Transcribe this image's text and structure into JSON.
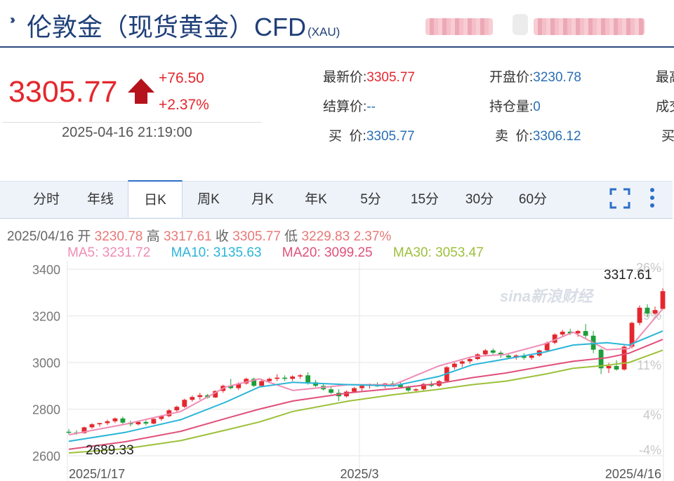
{
  "header": {
    "title": "伦敦金（现货黄金）CFD",
    "code": "(XAU)",
    "icon": "double-chevron-icon"
  },
  "quote": {
    "price": "3305.77",
    "change": "+76.50",
    "change_pct": "+2.37%",
    "datetime": "2025-04-16 21:19:00",
    "direction_icon": "up-arrow-icon",
    "up_color": "#e4272d"
  },
  "fields": [
    {
      "label": "最新价:",
      "value": "3305.77",
      "up": true
    },
    {
      "label": "开盘价:",
      "value": "3230.78",
      "up": false
    },
    {
      "label": "最高",
      "value": "",
      "up": false
    },
    {
      "label": "结算价:",
      "value": "--",
      "up": false
    },
    {
      "label": "持仓量:",
      "value": "0",
      "up": false
    },
    {
      "label": "成交",
      "value": "",
      "up": false
    },
    {
      "label": "买  价:",
      "value": "3305.77",
      "up": false
    },
    {
      "label": "卖  价:",
      "value": "3306.12",
      "up": false
    },
    {
      "label": "买",
      "value": "",
      "up": false
    }
  ],
  "tabs": [
    "分时",
    "年线",
    "日K",
    "周K",
    "月K",
    "年K",
    "5分",
    "15分",
    "30分",
    "60分"
  ],
  "active_tab": "日K",
  "toolbar_icons": [
    "fullscreen-icon",
    "more-vertical-icon"
  ],
  "bar_info": {
    "date": "2025/04/16",
    "open_label": "开",
    "open": "3230.78",
    "high_label": "高",
    "high": "3317.61",
    "close_label": "收",
    "close": "3305.77",
    "low_label": "低",
    "low": "3229.83",
    "pct": "2.37%"
  },
  "ma_legend": [
    {
      "label": "MA5: 3231.72",
      "color": "#f08cb4"
    },
    {
      "label": "MA10: 3135.63",
      "color": "#2ab5d8"
    },
    {
      "label": "MA20: 3099.25",
      "color": "#e0507a"
    },
    {
      "label": "MA30: 3053.47",
      "color": "#9dc03a"
    }
  ],
  "watermark": "sina新浪财经",
  "chart_data": {
    "type": "candlestick",
    "x_ticks": [
      "2025/1/17",
      "2025/3",
      "2025/4/16"
    ],
    "y_ticks": [
      2600,
      2800,
      3000,
      3200,
      3400
    ],
    "ylim": [
      2570,
      3420
    ],
    "right_ticks": [
      "26%",
      "19%",
      "11%",
      "4%",
      "-4%"
    ],
    "max_label": "3317.61",
    "min_label": "2689.33",
    "ohlc": [
      [
        2703,
        2715,
        2692,
        2702
      ],
      [
        2700,
        2710,
        2690,
        2697
      ],
      [
        2697,
        2725,
        2695,
        2722
      ],
      [
        2722,
        2740,
        2716,
        2735
      ],
      [
        2735,
        2742,
        2725,
        2740
      ],
      [
        2740,
        2755,
        2732,
        2748
      ],
      [
        2748,
        2765,
        2740,
        2760
      ],
      [
        2760,
        2768,
        2735,
        2742
      ],
      [
        2742,
        2750,
        2726,
        2735
      ],
      [
        2735,
        2750,
        2730,
        2745
      ],
      [
        2745,
        2752,
        2730,
        2738
      ],
      [
        2738,
        2760,
        2735,
        2758
      ],
      [
        2758,
        2775,
        2750,
        2770
      ],
      [
        2770,
        2800,
        2765,
        2795
      ],
      [
        2795,
        2815,
        2785,
        2810
      ],
      [
        2810,
        2845,
        2805,
        2840
      ],
      [
        2840,
        2858,
        2832,
        2852
      ],
      [
        2852,
        2870,
        2840,
        2860
      ],
      [
        2860,
        2865,
        2845,
        2850
      ],
      [
        2850,
        2880,
        2848,
        2878
      ],
      [
        2878,
        2905,
        2870,
        2900
      ],
      [
        2900,
        2930,
        2885,
        2890
      ],
      [
        2890,
        2915,
        2882,
        2910
      ],
      [
        2910,
        2935,
        2905,
        2930
      ],
      [
        2930,
        2935,
        2895,
        2900
      ],
      [
        2900,
        2925,
        2895,
        2920
      ],
      [
        2920,
        2935,
        2912,
        2930
      ],
      [
        2930,
        2950,
        2920,
        2935
      ],
      [
        2935,
        2945,
        2920,
        2930
      ],
      [
        2930,
        2945,
        2920,
        2940
      ],
      [
        2940,
        2950,
        2930,
        2945
      ],
      [
        2945,
        2958,
        2905,
        2915
      ],
      [
        2915,
        2925,
        2895,
        2900
      ],
      [
        2900,
        2910,
        2880,
        2885
      ],
      [
        2885,
        2895,
        2865,
        2870
      ],
      [
        2870,
        2885,
        2835,
        2855
      ],
      [
        2855,
        2880,
        2850,
        2875
      ],
      [
        2875,
        2895,
        2870,
        2890
      ],
      [
        2890,
        2905,
        2878,
        2900
      ],
      [
        2900,
        2910,
        2888,
        2905
      ],
      [
        2905,
        2915,
        2895,
        2898
      ],
      [
        2898,
        2912,
        2890,
        2910
      ],
      [
        2910,
        2920,
        2900,
        2905
      ],
      [
        2905,
        2915,
        2890,
        2895
      ],
      [
        2895,
        2900,
        2875,
        2880
      ],
      [
        2880,
        2890,
        2870,
        2885
      ],
      [
        2885,
        2912,
        2880,
        2908
      ],
      [
        2908,
        2920,
        2895,
        2900
      ],
      [
        2900,
        2925,
        2895,
        2920
      ],
      [
        2920,
        2985,
        2915,
        2980
      ],
      [
        2980,
        3000,
        2970,
        2995
      ],
      [
        2995,
        3010,
        2980,
        3005
      ],
      [
        3005,
        3020,
        2995,
        3015
      ],
      [
        3015,
        3040,
        3010,
        3035
      ],
      [
        3035,
        3058,
        3028,
        3052
      ],
      [
        3052,
        3060,
        3035,
        3042
      ],
      [
        3042,
        3050,
        3020,
        3030
      ],
      [
        3030,
        3040,
        3015,
        3022
      ],
      [
        3022,
        3035,
        3012,
        3030
      ],
      [
        3030,
        3040,
        3012,
        3020
      ],
      [
        3020,
        3035,
        3012,
        3030
      ],
      [
        3030,
        3055,
        3025,
        3052
      ],
      [
        3052,
        3090,
        3045,
        3085
      ],
      [
        3085,
        3125,
        3078,
        3120
      ],
      [
        3120,
        3140,
        3110,
        3132
      ],
      [
        3132,
        3145,
        3118,
        3125
      ],
      [
        3125,
        3140,
        3110,
        3135
      ],
      [
        3135,
        3165,
        3100,
        3115
      ],
      [
        3115,
        3135,
        3040,
        3055
      ],
      [
        3055,
        3060,
        2950,
        2975
      ],
      [
        2975,
        2998,
        2955,
        2985
      ],
      [
        2985,
        3010,
        2965,
        2970
      ],
      [
        2970,
        3075,
        2965,
        3068
      ],
      [
        3068,
        3175,
        3060,
        3170
      ],
      [
        3170,
        3245,
        3160,
        3235
      ],
      [
        3235,
        3250,
        3195,
        3210
      ],
      [
        3210,
        3240,
        3205,
        3225
      ],
      [
        3230,
        3318,
        3230,
        3306
      ]
    ],
    "ma": [
      {
        "name": "MA5",
        "color": "#f08cb4",
        "points": [
          [
            0,
            2690
          ],
          [
            10,
            2735
          ],
          [
            20,
            2790
          ],
          [
            28,
            2895
          ],
          [
            34,
            2930
          ],
          [
            40,
            2880
          ],
          [
            50,
            2905
          ],
          [
            58,
            2905
          ],
          [
            66,
            2985
          ],
          [
            72,
            3025
          ],
          [
            78,
            3035
          ],
          [
            85,
            3080
          ],
          [
            90,
            3130
          ],
          [
            96,
            3055
          ],
          [
            100,
            3060
          ],
          [
            106,
            3230
          ]
        ]
      },
      {
        "name": "MA10",
        "color": "#2ab5d8",
        "points": [
          [
            0,
            2662
          ],
          [
            10,
            2700
          ],
          [
            20,
            2755
          ],
          [
            28,
            2830
          ],
          [
            34,
            2895
          ],
          [
            40,
            2915
          ],
          [
            50,
            2905
          ],
          [
            58,
            2900
          ],
          [
            66,
            2940
          ],
          [
            72,
            2990
          ],
          [
            78,
            3015
          ],
          [
            85,
            3045
          ],
          [
            90,
            3075
          ],
          [
            96,
            3085
          ],
          [
            100,
            3075
          ],
          [
            106,
            3135
          ]
        ]
      },
      {
        "name": "MA20",
        "color": "#e0507a",
        "points": [
          [
            0,
            2628
          ],
          [
            10,
            2660
          ],
          [
            20,
            2705
          ],
          [
            28,
            2760
          ],
          [
            34,
            2800
          ],
          [
            40,
            2835
          ],
          [
            50,
            2870
          ],
          [
            58,
            2888
          ],
          [
            66,
            2910
          ],
          [
            72,
            2935
          ],
          [
            78,
            2955
          ],
          [
            85,
            2985
          ],
          [
            90,
            3005
          ],
          [
            96,
            3020
          ],
          [
            100,
            3040
          ],
          [
            106,
            3099
          ]
        ]
      },
      {
        "name": "MA30",
        "color": "#9dc03a",
        "points": [
          [
            0,
            2612
          ],
          [
            10,
            2630
          ],
          [
            20,
            2665
          ],
          [
            28,
            2710
          ],
          [
            34,
            2745
          ],
          [
            40,
            2790
          ],
          [
            50,
            2835
          ],
          [
            58,
            2862
          ],
          [
            66,
            2885
          ],
          [
            72,
            2905
          ],
          [
            78,
            2920
          ],
          [
            85,
            2950
          ],
          [
            90,
            2975
          ],
          [
            96,
            2988
          ],
          [
            100,
            3000
          ],
          [
            106,
            3053
          ]
        ]
      }
    ]
  }
}
